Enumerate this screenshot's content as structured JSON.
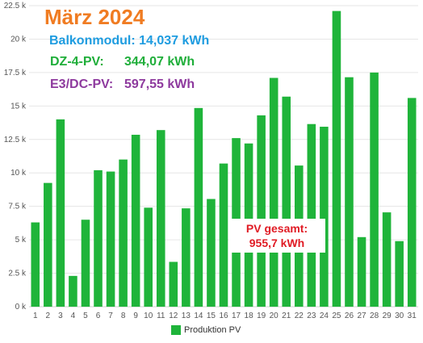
{
  "colors": {
    "bar": "#1fb43a",
    "title": "#f07c22",
    "balkon": "#1e9ce0",
    "dz": "#1fae3a",
    "e3": "#8e3a9e",
    "pv_total": "#e01b24",
    "grid": "#e6e6e6"
  },
  "annotations": {
    "title": "März 2024",
    "balkon": "Balkonmodul: 14,037 kWh",
    "dz_label": "DZ-4-PV:",
    "dz_value": "344,07 kWh",
    "e3_label": "E3/DC-PV:",
    "e3_value": "597,55 kWh",
    "pv_total_label": "PV gesamt:",
    "pv_total_value": "955,7 kWh"
  },
  "chart_data": {
    "type": "bar",
    "categories": [
      "1",
      "2",
      "3",
      "4",
      "5",
      "6",
      "7",
      "8",
      "9",
      "10",
      "11",
      "12",
      "13",
      "14",
      "15",
      "16",
      "17",
      "18",
      "19",
      "20",
      "21",
      "22",
      "23",
      "24",
      "25",
      "26",
      "27",
      "28",
      "29",
      "30",
      "31"
    ],
    "series": [
      {
        "name": "Produktion PV",
        "values": [
          6300,
          9250,
          14000,
          2300,
          6500,
          10200,
          10100,
          11000,
          12850,
          7400,
          13200,
          3350,
          7350,
          14850,
          8050,
          10700,
          12600,
          12200,
          14300,
          17100,
          15700,
          10550,
          13650,
          13450,
          22100,
          17150,
          5200,
          17500,
          7050,
          4900,
          15600
        ]
      }
    ],
    "yticks": [
      "0 k",
      "2.5 k",
      "5 k",
      "7.5 k",
      "10 k",
      "12.5 k",
      "15 k",
      "17.5 k",
      "20 k",
      "22.5 k"
    ],
    "ylim": [
      0,
      22500
    ],
    "grid": true,
    "legend_position": "bottom-center"
  }
}
